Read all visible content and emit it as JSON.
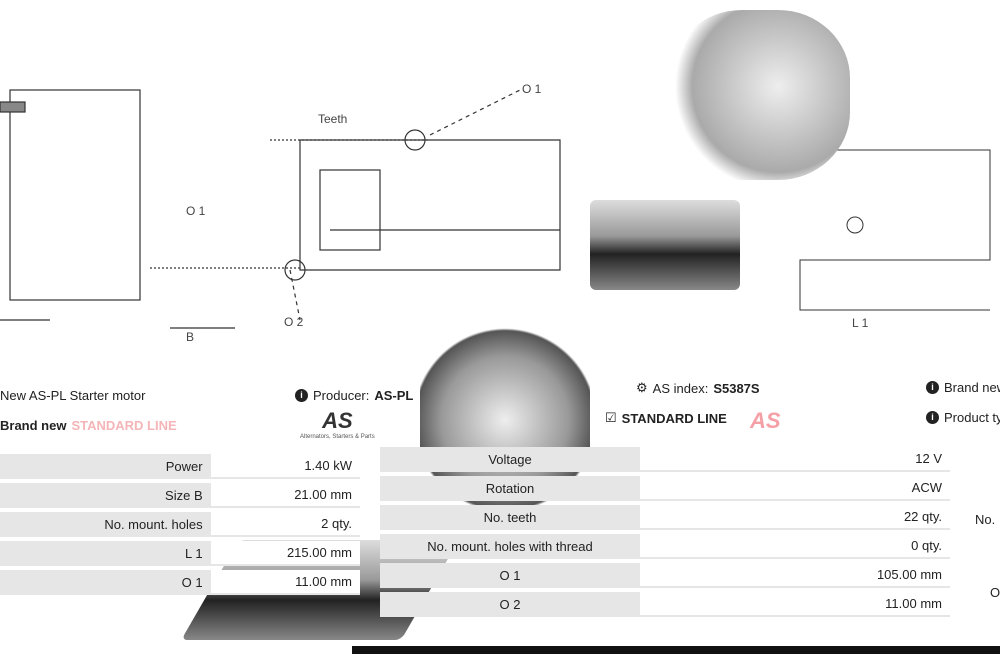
{
  "diagram": {
    "labels": {
      "teeth": "Teeth",
      "o1_top": "O 1",
      "o1_left": "O 1",
      "o2": "O 2",
      "b": "B",
      "l1": "L 1"
    }
  },
  "info": {
    "title": "New AS-PL Starter motor",
    "producer_label": "Producer:",
    "producer_value": "AS-PL",
    "as_index_label": "AS index:",
    "as_index_value": "S5387S",
    "brand_new_right": "Brand new",
    "condition": "Brand new",
    "line_left": "STANDARD LINE",
    "line_right": "STANDARD LINE",
    "product_type_label": "Product type:",
    "logo_text": "AS",
    "logo_tagline": "Alternators, Starters & Parts"
  },
  "table_left": [
    {
      "k": "Power",
      "v": "1.40 kW"
    },
    {
      "k": "Size B",
      "v": "21.00 mm"
    },
    {
      "k": "No. mount. holes",
      "v": "2 qty."
    },
    {
      "k": "L 1",
      "v": "215.00 mm"
    },
    {
      "k": "O 1",
      "v": "11.00 mm"
    }
  ],
  "table_right": [
    {
      "k": "Voltage",
      "v": "12 V"
    },
    {
      "k": "Rotation",
      "v": "ACW"
    },
    {
      "k": "No. teeth",
      "v": "22 qty."
    },
    {
      "k": "No. mount. holes with thread",
      "v": "0 qty."
    },
    {
      "k": "O 1",
      "v": "105.00 mm"
    },
    {
      "k": "O 2",
      "v": "11.00 mm"
    }
  ],
  "table_far_right": [
    "No.",
    "O"
  ],
  "colors": {
    "accent_red": "#e8303a",
    "row_gray": "#e6e6e6"
  }
}
